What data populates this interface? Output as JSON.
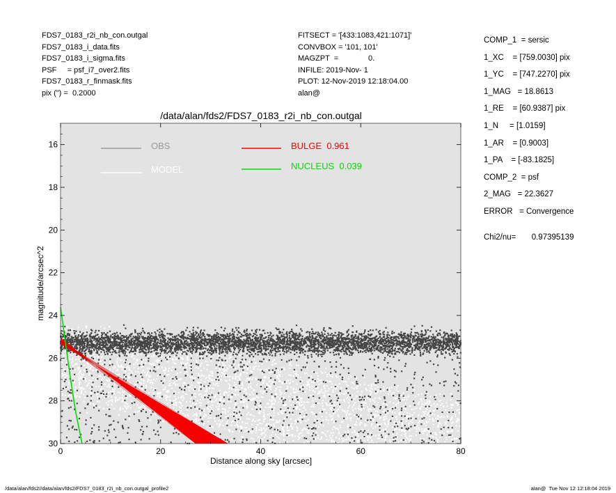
{
  "header_left": [
    "FDS7_0183_r2i_nb_con.outgal",
    "FDS7_0183_i_data.fits",
    "FDS7_0183_i_sigma.fits",
    "PSF     = psf_i7_over2.fits",
    "FDS7_0183_r_finmask.fits",
    "pix (\") =  0.2000"
  ],
  "header_mid": [
    "FITSECT = '[433:1083,421:1071]'",
    "CONVBOX = '101, 101'",
    "MAGZPT  =              0.",
    "INFILE: 2019-Nov- 1",
    "PLOT: 12-Nov-2019 12:18:04.00",
    "alan@"
  ],
  "header_right": [
    "COMP_1  = sersic",
    "1_XC    = [759.0030] pix",
    "1_YC    = [747.2270] pix",
    "1_MAG   = 18.8613",
    "1_RE    = [60.9387] pix",
    "1_N     = [1.0159]",
    "1_AR    = [0.9003]",
    "1_PA    = [-83.1825]",
    "",
    "COMP_2  = psf",
    "2_MAG   = 22.3627",
    "",
    "ERROR   = Convergence",
    "",
    "Chi2/nu=       0.97395139"
  ],
  "footer_left": "/data/alan/fds2//data/alan/fds2/FDS7_0183_r2i_nb_con.outgal_profile2",
  "footer_right": "alan@  Tue Nov 12 12:18:04 2019",
  "colors": {
    "plot_background": "#e3e3e3",
    "obs": "#444444",
    "model": "#ffffff",
    "bulge": "#ff0000",
    "nucleus": "#00dd00",
    "obs_legend_text": "#999999"
  },
  "chart_data": {
    "type": "scatter",
    "title": "/data/alan/fds2/FDS7_0183_r2i_nb_con.outgal",
    "xlabel": "Distance along sky [arcsec]",
    "ylabel": "magnitude/arcsec^2",
    "xlim": [
      0,
      80
    ],
    "ylim": [
      30,
      15
    ],
    "y_inverted": true,
    "grid": false,
    "legend_placement": "top-left",
    "x_ticks": [
      0,
      20,
      40,
      60,
      80
    ],
    "y_ticks": [
      16,
      18,
      20,
      22,
      24,
      26,
      28,
      30
    ],
    "series": [
      {
        "name": "OBS",
        "kind": "points",
        "color": "#444444",
        "x_range": [
          0,
          80
        ],
        "y_center": 25.3,
        "y_spread": 0.7,
        "faint_tail_to": 30
      },
      {
        "name": "MODEL",
        "kind": "points",
        "color": "#ffffff",
        "x_range": [
          0,
          80
        ],
        "y_at_x0": 25.2,
        "y_at_x80": 29.0,
        "spread": 1.6
      },
      {
        "name": "BULGE",
        "fraction": "0.961",
        "kind": "band",
        "color": "#ff0000",
        "x": [
          0,
          33
        ],
        "y_upper": [
          25.1,
          30.0
        ],
        "y_lower": [
          25.3,
          30.0
        ]
      },
      {
        "name": "NUCLEUS",
        "fraction": "0.039",
        "kind": "line",
        "color": "#00dd00",
        "x": [
          0,
          0.4,
          1.0,
          2.0,
          3.0,
          4.3
        ],
        "y": [
          23.6,
          24.3,
          25.3,
          27.0,
          28.5,
          30.0
        ]
      }
    ]
  }
}
